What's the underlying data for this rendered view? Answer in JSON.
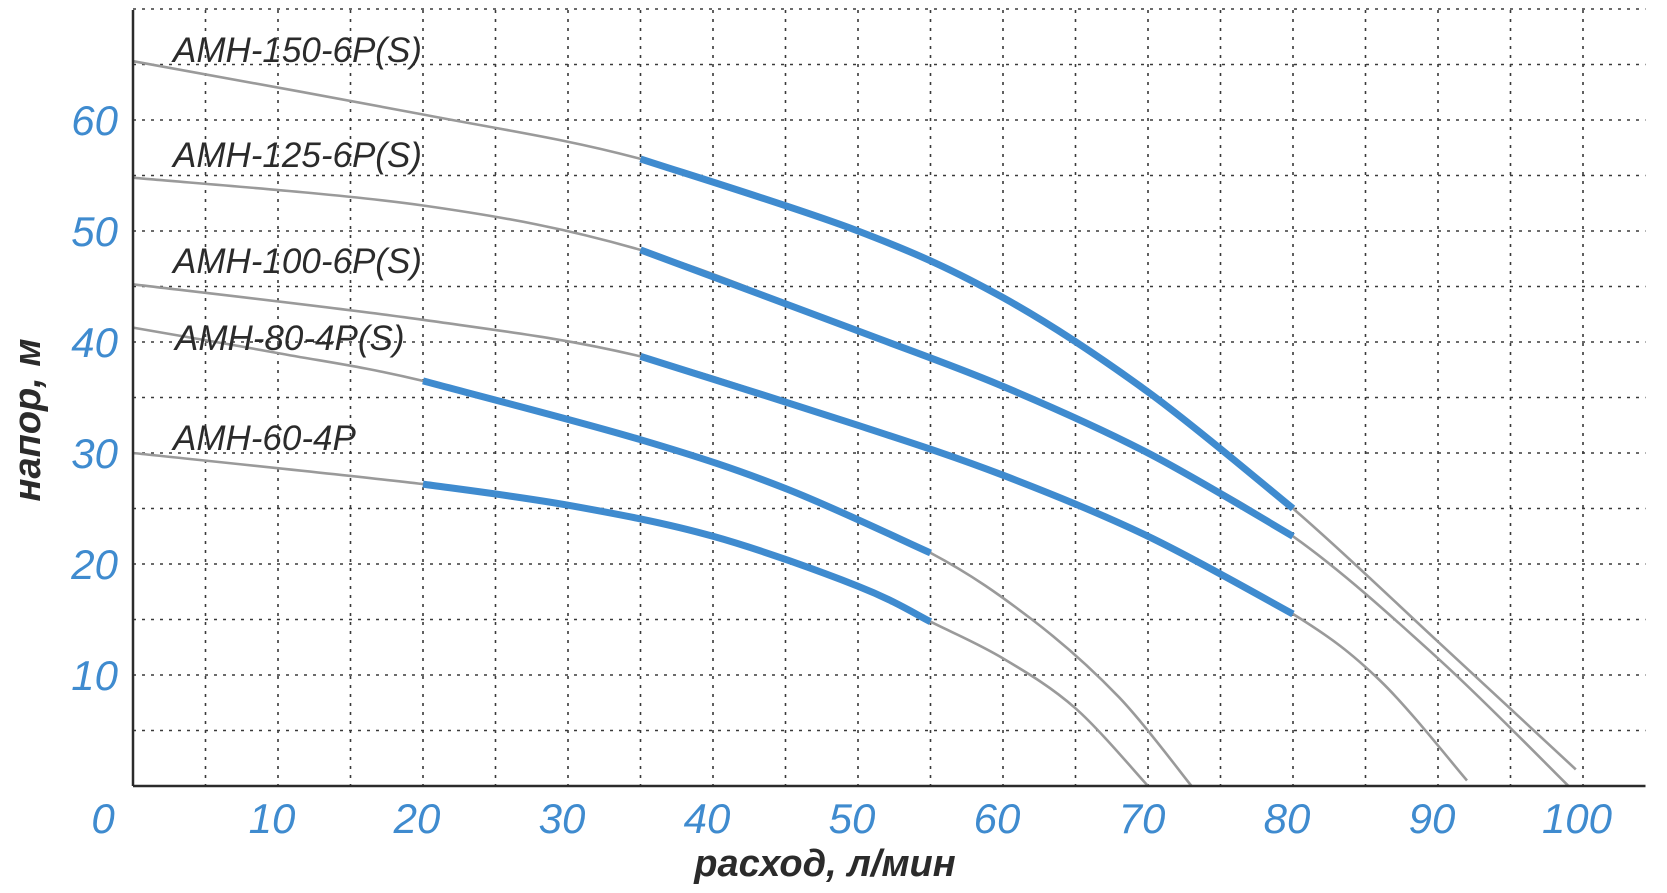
{
  "chart_data": {
    "type": "line",
    "title": "",
    "xlabel": "расход, л/мин",
    "ylabel": "напор, м",
    "xlim": [
      0,
      105
    ],
    "ylim": [
      0,
      70
    ],
    "x_ticks": [
      0,
      10,
      20,
      30,
      40,
      50,
      60,
      70,
      80,
      90,
      100
    ],
    "y_ticks": [
      10,
      20,
      30,
      40,
      50,
      60
    ],
    "grid": true,
    "colors": {
      "curve": "#9a9a9a",
      "working_range": "#3f8bcf",
      "tick_labels": "#3f8bcf",
      "text": "#2b2b2b"
    },
    "series": [
      {
        "name": "АМН-150-6Р(S)",
        "x": [
          0,
          20,
          35,
          50,
          60,
          70,
          80,
          90,
          99.5
        ],
        "y": [
          65.3,
          60.5,
          56.5,
          50,
          44,
          35.5,
          25,
          13,
          1.5
        ],
        "working_range": [
          35,
          80
        ]
      },
      {
        "name": "АМН-125-6Р(S)",
        "x": [
          0,
          20,
          35,
          50,
          60,
          70,
          80,
          90,
          99
        ],
        "y": [
          54.8,
          52.3,
          48.3,
          41,
          36,
          30,
          22.5,
          11.5,
          0
        ],
        "working_range": [
          35,
          80
        ]
      },
      {
        "name": "АМН-100-6Р(S)",
        "x": [
          0,
          20,
          35,
          50,
          60,
          70,
          80,
          86,
          92
        ],
        "y": [
          45.2,
          42,
          38.7,
          32.5,
          28,
          22.5,
          15.5,
          9.5,
          0.5
        ],
        "working_range": [
          35,
          80
        ]
      },
      {
        "name": "АМН-80-4Р(S)",
        "x": [
          0,
          10,
          20,
          35,
          45,
          55,
          62,
          68,
          73
        ],
        "y": [
          41.3,
          39,
          36.5,
          31.2,
          26.8,
          21,
          15,
          8,
          0
        ],
        "working_range": [
          20,
          55
        ]
      },
      {
        "name": "АМН-60-4Р",
        "x": [
          0,
          20,
          30,
          40,
          50,
          55,
          60,
          65,
          70
        ],
        "y": [
          30,
          27.2,
          25.3,
          22.5,
          18,
          14.8,
          11.5,
          7,
          0
        ],
        "working_range": [
          20,
          55
        ]
      }
    ]
  }
}
